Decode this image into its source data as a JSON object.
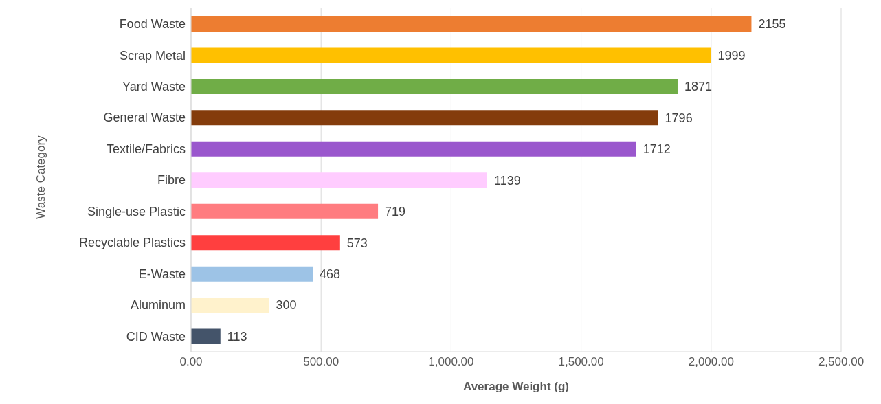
{
  "chart_data": {
    "type": "bar",
    "orientation": "horizontal",
    "xlabel": "Average Weight (g)",
    "ylabel": "Waste Category",
    "categories": [
      "Food Waste",
      "Scrap Metal",
      "Yard Waste",
      "General Waste",
      "Textile/Fabrics",
      "Fibre",
      "Single-use Plastic",
      "Recyclable Plastics",
      "E-Waste",
      "Aluminum",
      "CID Waste"
    ],
    "values": [
      2155,
      1999,
      1871,
      1796,
      1712,
      1139,
      719,
      573,
      468,
      300,
      113
    ],
    "colors": [
      "#ed7d31",
      "#ffc000",
      "#70ad47",
      "#843c0c",
      "#9a57cd",
      "#ffccff",
      "#ff7c80",
      "#ff3f3f",
      "#9dc3e6",
      "#fff2cc",
      "#44546a"
    ],
    "xlim": [
      0,
      2500
    ],
    "xticks": [
      {
        "value": 0,
        "label": "0.00"
      },
      {
        "value": 500,
        "label": "500.00"
      },
      {
        "value": 1000,
        "label": "1,000.00"
      },
      {
        "value": 1500,
        "label": "1,500.00"
      },
      {
        "value": 2000,
        "label": "2,000.00"
      },
      {
        "value": 2500,
        "label": "2,500.00"
      }
    ],
    "grid": "x",
    "data_labels": true
  }
}
